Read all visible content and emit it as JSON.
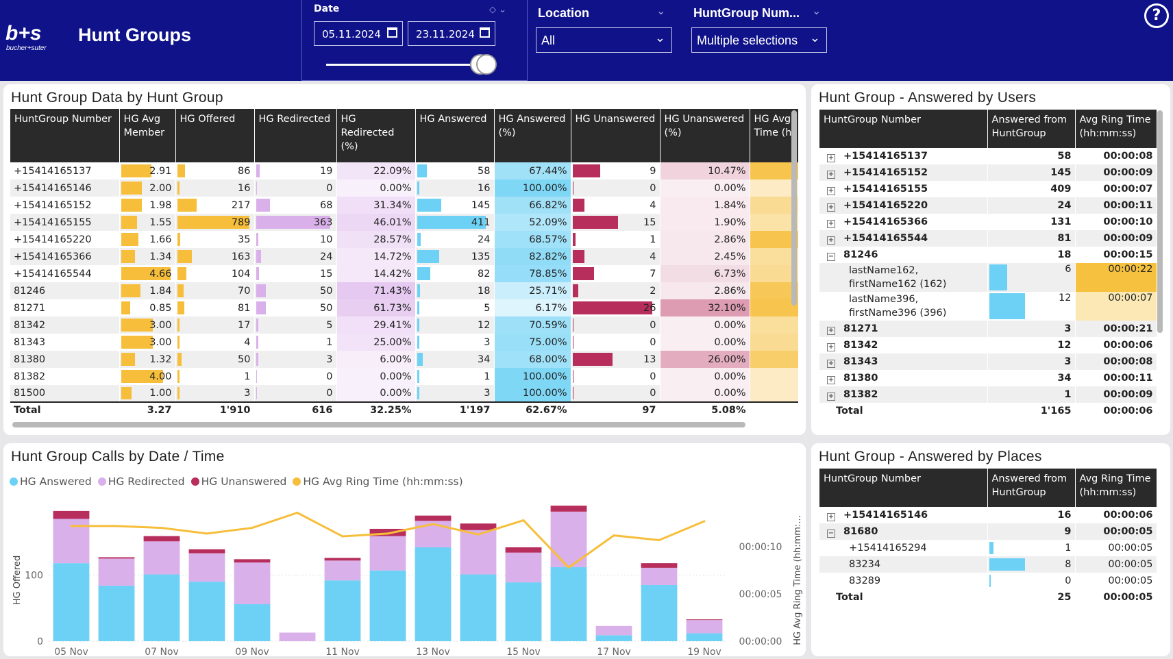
{
  "header": {
    "title": "Hunt Groups",
    "logo_text": "bucher+suter",
    "brand_color": "#0f1289"
  },
  "date_filter": {
    "label": "Date",
    "start": "05.11.2024",
    "end": "23.11.2024"
  },
  "location_filter": {
    "label": "Location",
    "value": "All"
  },
  "huntgroup_filter": {
    "label": "HuntGroup Num...",
    "value": "Multiple selections"
  },
  "help": {
    "label": "?"
  },
  "hg_data": {
    "title": "Hunt Group Data by Hunt Group",
    "columns": [
      "HuntGroup Number",
      "HG Avg Member",
      "HG Offered",
      "HG Redirected",
      "HG Redirected (%)",
      "HG Answered",
      "HG Answered (%)",
      "HG Unanswered",
      "HG Unanswered (%)",
      "HG Avg Time (h"
    ],
    "rows": [
      [
        "+15414165137",
        "2.91",
        "86",
        "19",
        "22.09%",
        "58",
        "67.44%",
        "9",
        "10.47%"
      ],
      [
        "+15414165146",
        "2.00",
        "16",
        "0",
        "0.00%",
        "16",
        "100.00%",
        "0",
        "0.00%"
      ],
      [
        "+15414165152",
        "1.98",
        "217",
        "68",
        "31.34%",
        "145",
        "66.82%",
        "4",
        "1.84%"
      ],
      [
        "+15414165155",
        "1.55",
        "789",
        "363",
        "46.01%",
        "411",
        "52.09%",
        "15",
        "1.90%"
      ],
      [
        "+15414165220",
        "1.66",
        "35",
        "10",
        "28.57%",
        "24",
        "68.57%",
        "1",
        "2.86%"
      ],
      [
        "+15414165366",
        "1.34",
        "163",
        "24",
        "14.72%",
        "135",
        "82.82%",
        "4",
        "2.45%"
      ],
      [
        "+15414165544",
        "4.66",
        "104",
        "15",
        "14.42%",
        "82",
        "78.85%",
        "7",
        "6.73%"
      ],
      [
        "81246",
        "1.84",
        "70",
        "50",
        "71.43%",
        "18",
        "25.71%",
        "2",
        "2.86%"
      ],
      [
        "81271",
        "0.85",
        "81",
        "50",
        "61.73%",
        "5",
        "6.17%",
        "26",
        "32.10%"
      ],
      [
        "81342",
        "3.00",
        "17",
        "5",
        "29.41%",
        "12",
        "70.59%",
        "0",
        "0.00%"
      ],
      [
        "81343",
        "3.00",
        "4",
        "1",
        "25.00%",
        "3",
        "75.00%",
        "0",
        "0.00%"
      ],
      [
        "81380",
        "1.32",
        "50",
        "3",
        "6.00%",
        "34",
        "68.00%",
        "13",
        "26.00%"
      ],
      [
        "81382",
        "4.00",
        "1",
        "0",
        "0.00%",
        "1",
        "100.00%",
        "0",
        "0.00%"
      ],
      [
        "81500",
        "1.00",
        "3",
        "0",
        "0.00%",
        "3",
        "100.00%",
        "0",
        "0.00%"
      ]
    ],
    "avg_time_fill": [
      0.9,
      0.3,
      0.55,
      0.45,
      0.9,
      0.5,
      0.55,
      0.85,
      0.9,
      0.5,
      0.55,
      0.75,
      0.3,
      0.3
    ],
    "total": [
      "Total",
      "3.27",
      "1'910",
      "616",
      "32.25%",
      "1'197",
      "62.67%",
      "97",
      "5.08%"
    ]
  },
  "users": {
    "title": "Hunt Group - Answered by Users",
    "columns": [
      "HuntGroup Number",
      "Answered from HuntGroup",
      "Avg Ring Time (hh:mm:ss)"
    ],
    "rows": [
      {
        "type": "group",
        "expand": "+",
        "name": "+15414165137",
        "count": "58",
        "time": "00:00:08"
      },
      {
        "type": "group",
        "expand": "+",
        "name": "+15414165152",
        "count": "145",
        "time": "00:00:09"
      },
      {
        "type": "group",
        "expand": "+",
        "name": "+15414165155",
        "count": "409",
        "time": "00:00:07"
      },
      {
        "type": "group",
        "expand": "+",
        "name": "+15414165220",
        "count": "24",
        "time": "00:00:11"
      },
      {
        "type": "group",
        "expand": "+",
        "name": "+15414165366",
        "count": "131",
        "time": "00:00:10"
      },
      {
        "type": "group",
        "expand": "+",
        "name": "+15414165544",
        "count": "81",
        "time": "00:00:09"
      },
      {
        "type": "group",
        "expand": "−",
        "name": "81246",
        "count": "18",
        "time": "00:00:15"
      },
      {
        "type": "child",
        "name1": "lastName162,",
        "name2": "firstName162 (162)",
        "count": "6",
        "time": "00:00:22",
        "fill": 0.5,
        "heat": "#f6c13e"
      },
      {
        "type": "child",
        "name1": "lastName396,",
        "name2": "firstName396 (396)",
        "count": "12",
        "time": "00:00:07",
        "fill": 1,
        "heat": "#fbe8b4"
      },
      {
        "type": "group",
        "expand": "+",
        "name": "81271",
        "count": "3",
        "time": "00:00:21"
      },
      {
        "type": "group",
        "expand": "+",
        "name": "81342",
        "count": "12",
        "time": "00:00:06"
      },
      {
        "type": "group",
        "expand": "+",
        "name": "81343",
        "count": "3",
        "time": "00:00:08"
      },
      {
        "type": "group",
        "expand": "+",
        "name": "81380",
        "count": "34",
        "time": "00:00:11"
      },
      {
        "type": "group",
        "expand": "+",
        "name": "81382",
        "count": "1",
        "time": "00:00:09"
      }
    ],
    "total": {
      "label": "Total",
      "count": "1'165",
      "time": "00:00:06"
    }
  },
  "places": {
    "title": "Hunt Group - Answered by Places",
    "columns": [
      "HuntGroup Number",
      "Answered from HuntGroup",
      "Avg Ring Time (hh:mm:ss)"
    ],
    "rows": [
      {
        "type": "group",
        "expand": "+",
        "name": "+15414165146",
        "count": "16",
        "time": "00:00:06"
      },
      {
        "type": "group",
        "expand": "−",
        "name": "81680",
        "count": "9",
        "time": "00:00:05"
      },
      {
        "type": "child",
        "name": "+15414165294",
        "count": "1",
        "time": "00:00:05",
        "fill": 0.12
      },
      {
        "type": "child",
        "name": "83234",
        "count": "8",
        "time": "00:00:05",
        "fill": 1
      },
      {
        "type": "child",
        "name": "83289",
        "count": "0",
        "time": "00:00:05",
        "fill": 0
      }
    ],
    "total": {
      "label": "Total",
      "count": "25",
      "time": "00:00:05"
    }
  },
  "calls_chart": {
    "title": "Hunt Group Calls by Date / Time",
    "legend": [
      {
        "label": "HG Answered",
        "color": "#6dd1f5"
      },
      {
        "label": "HG Redirected",
        "color": "#dab0ea"
      },
      {
        "label": "HG Unanswered",
        "color": "#b72d5b"
      },
      {
        "label": "HG Avg Ring Time (hh:mm:ss)",
        "color": "#f6be3a"
      }
    ]
  },
  "chart_data": {
    "type": "bar",
    "stacked": true,
    "title": "Hunt Group Calls by Date / Time",
    "ylabel": "HG Offered",
    "y2label": "HG Avg Ring Time (hh:mm:...",
    "ylim": [
      0,
      200
    ],
    "y_ticks": [
      "0",
      "100"
    ],
    "y2_ticks": [
      "00:00:00",
      "00:00:05",
      "00:00:10"
    ],
    "y2lim_seconds": [
      0,
      14
    ],
    "categories": [
      "05 Nov",
      "06 Nov",
      "07 Nov",
      "08 Nov",
      "09 Nov",
      "10 Nov",
      "11 Nov",
      "12 Nov",
      "13 Nov",
      "14 Nov",
      "15 Nov",
      "16 Nov",
      "17 Nov",
      "18 Nov",
      "19 Nov"
    ],
    "x_tick_labels": [
      "05 Nov",
      "07 Nov",
      "09 Nov",
      "11 Nov",
      "13 Nov",
      "15 Nov",
      "17 Nov",
      "19 Nov"
    ],
    "series": [
      {
        "name": "HG Answered",
        "color": "#6dd1f5",
        "values": [
          118,
          84,
          101,
          90,
          56,
          0,
          92,
          107,
          142,
          101,
          89,
          112,
          9,
          85,
          12
        ]
      },
      {
        "name": "HG Redirected",
        "color": "#dab0ea",
        "values": [
          67,
          41,
          50,
          43,
          63,
          13,
          30,
          52,
          40,
          67,
          45,
          84,
          14,
          26,
          20
        ]
      },
      {
        "name": "HG Unanswered",
        "color": "#b72d5b",
        "values": [
          12,
          2,
          8,
          6,
          5,
          0,
          4,
          11,
          8,
          10,
          8,
          9,
          0,
          7,
          1
        ]
      },
      {
        "name": "HG Avg Ring Time (hh:mm:ss)",
        "color": "#f6be3a",
        "axis": "right",
        "values": [
          12.2,
          12.2,
          12.0,
          11.4,
          12.0,
          13.6,
          11.1,
          11.4,
          12.4,
          11.3,
          12.8,
          7.8,
          11.2,
          10.7,
          12.7
        ]
      }
    ]
  }
}
